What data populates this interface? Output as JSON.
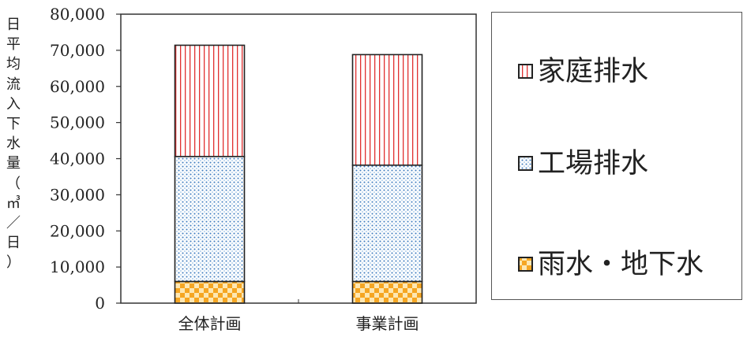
{
  "chart_data": {
    "type": "bar",
    "stacked": true,
    "categories": [
      "全体計画",
      "事業計画"
    ],
    "series": [
      {
        "name": "雨水・地下水",
        "values": [
          6000,
          6000
        ],
        "pattern": "checker",
        "color": "#f5a623"
      },
      {
        "name": "工場排水",
        "values": [
          34600,
          32200
        ],
        "pattern": "dots",
        "color": "#4a86c5"
      },
      {
        "name": "家庭排水",
        "values": [
          30800,
          30600
        ],
        "pattern": "vertical-stripes",
        "color": "#e03030"
      }
    ],
    "ylim": [
      0,
      80000
    ],
    "yticks": [
      "0",
      "10,000",
      "20,000",
      "30,000",
      "40,000",
      "50,000",
      "60,000",
      "70,000",
      "80,000"
    ],
    "ylabel": [
      "日",
      "平",
      "均",
      "流",
      "入",
      "下",
      "水",
      "量",
      "（",
      "㎥",
      "／",
      "日",
      "）"
    ],
    "xlabel": "",
    "title": "",
    "grid": false,
    "legend_position": "right"
  }
}
